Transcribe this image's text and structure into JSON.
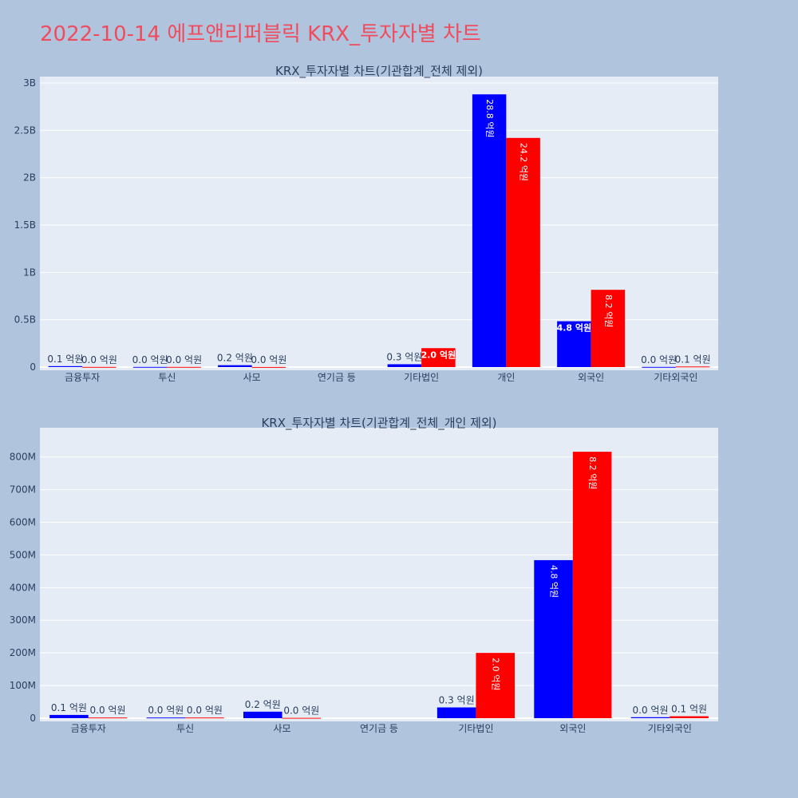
{
  "page_title": "2022-10-14 에프앤리퍼블릭 KRX_투자자별 차트",
  "colors": {
    "background": "#b0c4de",
    "plot_bg": "#e5ecf6",
    "title": "#ef4d5e",
    "buy": "#0000ff",
    "sell": "#ff0000",
    "text": "#2a3f5f"
  },
  "chart_data": [
    {
      "type": "bar",
      "title": "KRX_투자자별 차트(기관합계_전체 제외)",
      "categories": [
        "금융투자",
        "투신",
        "사모",
        "연기금 등",
        "기타법인",
        "개인",
        "외국인",
        "기타외국인"
      ],
      "series": [
        {
          "values": [
            10000000,
            2000000,
            20000000,
            0,
            30000000,
            2880000000,
            484000000,
            2000000
          ],
          "labels": [
            "0.1 억원",
            "0.0 억원",
            "0.2 억원",
            "",
            "0.3 억원",
            "28.8 억원",
            "4.8 억원",
            "0.0 억원"
          ]
        },
        {
          "values": [
            2000000,
            2000000,
            1000000,
            0,
            200000000,
            2420000000,
            816000000,
            6000000
          ],
          "labels": [
            "0.0 억원",
            "0.0 억원",
            "0.0 억원",
            "",
            "2.0 억원",
            "24.2 억원",
            "8.2 억원",
            "0.1 억원"
          ]
        }
      ],
      "ylim": [
        0,
        3000000000
      ],
      "yticks": [
        0,
        500000000,
        1000000000,
        1500000000,
        2000000000,
        2500000000,
        3000000000
      ],
      "ytick_labels": [
        "0",
        "0.5B",
        "1B",
        "1.5B",
        "2B",
        "2.5B",
        "3B"
      ],
      "grid": true
    },
    {
      "type": "bar",
      "title": "KRX_투자자별 차트(기관합계_전체_개인 제외)",
      "categories": [
        "금융투자",
        "투신",
        "사모",
        "연기금 등",
        "기타법인",
        "외국인",
        "기타외국인"
      ],
      "series": [
        {
          "values": [
            10000000,
            2000000,
            20000000,
            0,
            33000000,
            484000000,
            3000000
          ],
          "labels": [
            "0.1 억원",
            "0.0 억원",
            "0.2 억원",
            "",
            "0.3 억원",
            "4.8 억원",
            "0.0 억원"
          ]
        },
        {
          "values": [
            2000000,
            2000000,
            1000000,
            0,
            200000000,
            816000000,
            6000000
          ],
          "labels": [
            "0.0 억원",
            "0.0 억원",
            "0.0 억원",
            "",
            "2.0 억원",
            "8.2 억원",
            "0.1 억원"
          ]
        }
      ],
      "ylim": [
        0,
        870000000
      ],
      "yticks": [
        0,
        100000000,
        200000000,
        300000000,
        400000000,
        500000000,
        600000000,
        700000000,
        800000000
      ],
      "ytick_labels": [
        "0",
        "100M",
        "200M",
        "300M",
        "400M",
        "500M",
        "600M",
        "700M",
        "800M"
      ],
      "grid": true
    }
  ]
}
